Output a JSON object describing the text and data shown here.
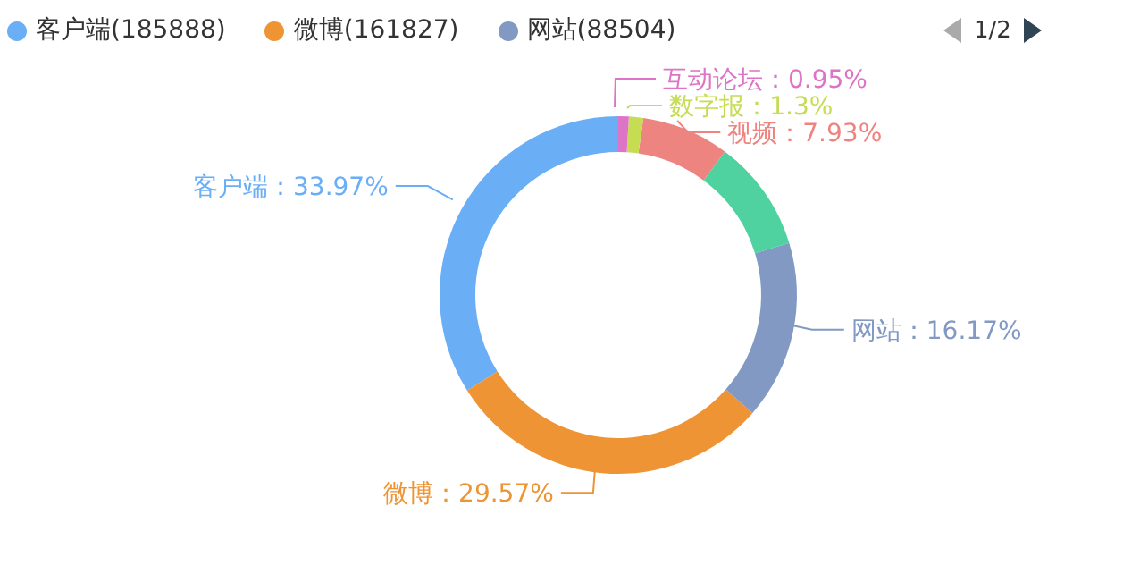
{
  "chart_data": {
    "type": "donut",
    "categories": [
      "客户端",
      "微博",
      "网站",
      null,
      "视频",
      "数字报",
      "互动论坛"
    ],
    "values": [
      33.97,
      29.57,
      16.17,
      10.11,
      7.93,
      1.3,
      0.95
    ],
    "colors": [
      "#6aaef6",
      "#ee9434",
      "#8199c3",
      "#4fd1a0",
      "#ee8480",
      "#c6dc52",
      "#de74c6"
    ],
    "value_labels": [
      "：33.97%",
      "：29.57%",
      "：16.17%",
      null,
      "：7.93%",
      "：1.3%",
      "：0.95%"
    ],
    "legend": "top",
    "annotations": [
      "1/2",
      "(185888)",
      "(161827)",
      "(88504)"
    ]
  }
}
